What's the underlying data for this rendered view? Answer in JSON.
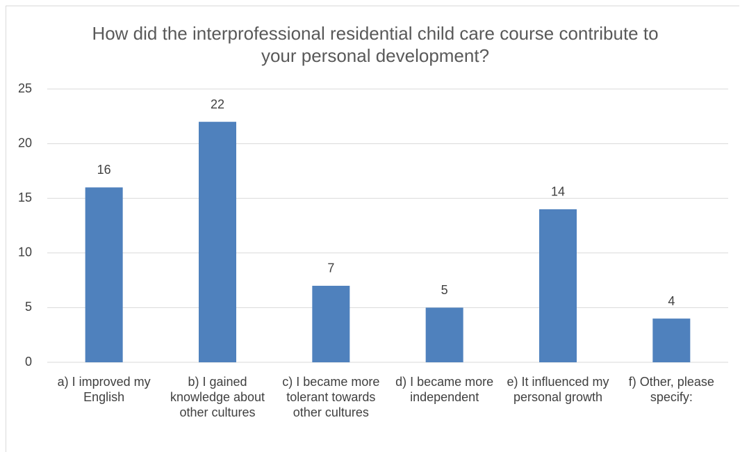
{
  "chart_data": {
    "type": "bar",
    "title": "How did the interprofessional residential child care course contribute to your personal development?",
    "categories": [
      "a) I improved my English",
      "b) I gained knowledge about other cultures",
      "c) I became more tolerant towards other cultures",
      "d) I became more independent",
      "e) It influenced my personal growth",
      "f) Other, please specify:"
    ],
    "values": [
      16,
      22,
      7,
      5,
      14,
      4
    ],
    "color": "#4f81bd",
    "ylim": [
      0,
      25
    ],
    "yticks": [
      0,
      5,
      10,
      15,
      20,
      25
    ],
    "grid": true
  }
}
